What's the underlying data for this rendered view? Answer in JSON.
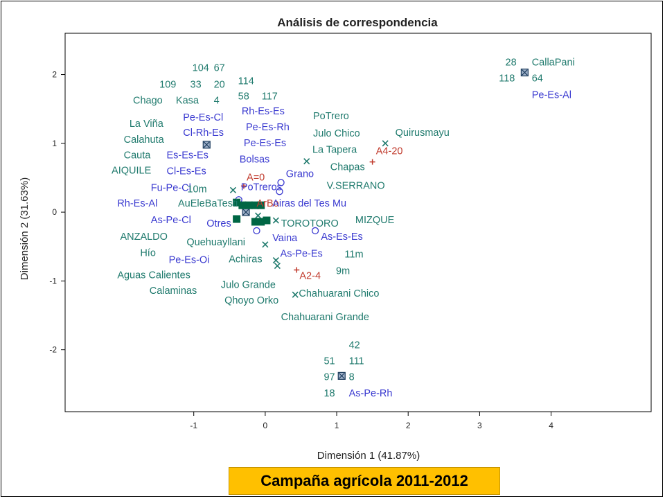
{
  "caption": "Campaña agrícola 2011-2012",
  "colors": {
    "row": "#1f7a6d",
    "column": "#3a3ad0",
    "supplementary": "#c0392b",
    "dense": "#006644",
    "axis": "#000000"
  },
  "chart_data": {
    "type": "scatter",
    "title": "Análisis de correspondencia",
    "xlabel": "Dimensión 1 (41.87%)",
    "ylabel": "Dimensión 2 (31.63%)",
    "xlim": [
      -2.8,
      5.4
    ],
    "ylim": [
      -2.9,
      2.6
    ],
    "xticks": [
      -1,
      0,
      1,
      2,
      3,
      4
    ],
    "yticks": [
      -2,
      -1,
      0,
      1,
      2
    ],
    "grid": false,
    "legend": "none",
    "series": [
      {
        "kind": "row",
        "marker": "x",
        "points": [
          {
            "x": 1.68,
            "y": 1.0
          },
          {
            "x": 0.58,
            "y": 0.74
          },
          {
            "x": 0.15,
            "y": -0.12
          },
          {
            "x": 0.0,
            "y": -0.47
          },
          {
            "x": 0.15,
            "y": -0.7
          },
          {
            "x": 0.17,
            "y": -0.78
          },
          {
            "x": 0.42,
            "y": -1.2
          },
          {
            "x": -0.45,
            "y": 0.32
          },
          {
            "x": -0.1,
            "y": -0.05
          }
        ]
      },
      {
        "kind": "column",
        "marker": "circle",
        "points": [
          {
            "x": 0.22,
            "y": 0.43
          },
          {
            "x": 0.2,
            "y": 0.3
          },
          {
            "x": 0.7,
            "y": -0.27
          },
          {
            "x": -0.12,
            "y": -0.27
          },
          {
            "x": -0.37,
            "y": 0.18
          }
        ]
      },
      {
        "kind": "supplementary",
        "marker": "plus",
        "points": [
          {
            "x": 1.5,
            "y": 0.73
          },
          {
            "x": 0.44,
            "y": -0.84
          },
          {
            "x": -0.3,
            "y": 0.38
          }
        ]
      },
      {
        "kind": "overlap",
        "marker": "boxed-x",
        "points": [
          {
            "x": 3.63,
            "y": 2.03
          },
          {
            "x": 1.07,
            "y": -2.38
          },
          {
            "x": -0.82,
            "y": 0.98
          },
          {
            "x": -0.27,
            "y": 0.0
          }
        ]
      },
      {
        "kind": "dense",
        "marker": "square",
        "points": [
          {
            "x": -0.4,
            "y": 0.14
          },
          {
            "x": -0.32,
            "y": 0.1
          },
          {
            "x": -0.14,
            "y": 0.1
          },
          {
            "x": -0.06,
            "y": 0.1
          },
          {
            "x": -0.4,
            "y": -0.1
          },
          {
            "x": -0.14,
            "y": -0.14
          },
          {
            "x": -0.06,
            "y": -0.14
          },
          {
            "x": 0.02,
            "y": -0.12
          },
          {
            "x": -0.23,
            "y": 0.1
          }
        ]
      }
    ],
    "labels": [
      {
        "text": "104",
        "x": -1.02,
        "y": 2.05,
        "kind": "row"
      },
      {
        "text": "67",
        "x": -0.72,
        "y": 2.05,
        "kind": "row"
      },
      {
        "text": "109",
        "x": -1.48,
        "y": 1.81,
        "kind": "row"
      },
      {
        "text": "33",
        "x": -1.05,
        "y": 1.81,
        "kind": "row"
      },
      {
        "text": "20",
        "x": -0.72,
        "y": 1.81,
        "kind": "row"
      },
      {
        "text": "114",
        "x": -0.38,
        "y": 1.86,
        "kind": "row"
      },
      {
        "text": "58",
        "x": -0.38,
        "y": 1.64,
        "kind": "row"
      },
      {
        "text": "117",
        "x": -0.05,
        "y": 1.64,
        "kind": "row"
      },
      {
        "text": "Chago",
        "x": -1.85,
        "y": 1.58,
        "kind": "row"
      },
      {
        "text": "Kasa",
        "x": -1.25,
        "y": 1.58,
        "kind": "row"
      },
      {
        "text": "4",
        "x": -0.72,
        "y": 1.58,
        "kind": "row"
      },
      {
        "text": "Pe-Es-Cl",
        "x": -1.15,
        "y": 1.33,
        "kind": "column"
      },
      {
        "text": "Rh-Es-Es",
        "x": -0.33,
        "y": 1.42,
        "kind": "column"
      },
      {
        "text": "Pe-Es-Rh",
        "x": -0.27,
        "y": 1.19,
        "kind": "column"
      },
      {
        "text": "PoTrero",
        "x": 0.67,
        "y": 1.35,
        "kind": "row"
      },
      {
        "text": "La Viña",
        "x": -1.9,
        "y": 1.24,
        "kind": "row"
      },
      {
        "text": "Cl-Rh-Es",
        "x": -1.15,
        "y": 1.11,
        "kind": "column"
      },
      {
        "text": "Julo Chico",
        "x": 0.67,
        "y": 1.1,
        "kind": "row"
      },
      {
        "text": "Quirusmayu",
        "x": 1.82,
        "y": 1.11,
        "kind": "row"
      },
      {
        "text": "Calahuta",
        "x": -1.98,
        "y": 1.01,
        "kind": "row"
      },
      {
        "text": "Pe-Es-Es",
        "x": -0.3,
        "y": 0.96,
        "kind": "column"
      },
      {
        "text": "La Tapera",
        "x": 0.66,
        "y": 0.86,
        "kind": "row"
      },
      {
        "text": "A4-20",
        "x": 1.55,
        "y": 0.84,
        "kind": "supplementary"
      },
      {
        "text": "Cauta",
        "x": -1.98,
        "y": 0.78,
        "kind": "row"
      },
      {
        "text": "Es-Es-Es",
        "x": -1.38,
        "y": 0.78,
        "kind": "column"
      },
      {
        "text": "Bolsas",
        "x": -0.36,
        "y": 0.72,
        "kind": "column"
      },
      {
        "text": "Chapas",
        "x": 0.91,
        "y": 0.61,
        "kind": "row"
      },
      {
        "text": "AIQUILE",
        "x": -2.15,
        "y": 0.56,
        "kind": "row"
      },
      {
        "text": "Cl-Es-Es",
        "x": -1.38,
        "y": 0.55,
        "kind": "column"
      },
      {
        "text": "Grano",
        "x": 0.29,
        "y": 0.51,
        "kind": "column"
      },
      {
        "text": "A=0",
        "x": -0.26,
        "y": 0.46,
        "kind": "supplementary"
      },
      {
        "text": "V.SERRANO",
        "x": 0.86,
        "y": 0.34,
        "kind": "row"
      },
      {
        "text": "Fu-Pe-Cl",
        "x": -1.6,
        "y": 0.31,
        "kind": "column"
      },
      {
        "text": "10m",
        "x": -1.09,
        "y": 0.29,
        "kind": "row"
      },
      {
        "text": "PoTreros",
        "x": -0.34,
        "y": 0.32,
        "kind": "column"
      },
      {
        "text": "Rh-Es-Al",
        "x": -2.07,
        "y": 0.08,
        "kind": "column"
      },
      {
        "text": "AuEleBaTesti",
        "x": -1.22,
        "y": 0.08,
        "kind": "row"
      },
      {
        "text": "ArBo",
        "x": -0.12,
        "y": 0.08,
        "kind": "supplementary"
      },
      {
        "text": "Airas del Tes Mu",
        "x": 0.1,
        "y": 0.08,
        "kind": "column"
      },
      {
        "text": "As-Pe-Cl",
        "x": -1.6,
        "y": -0.16,
        "kind": "column"
      },
      {
        "text": "Otres",
        "x": -0.82,
        "y": -0.21,
        "kind": "column"
      },
      {
        "text": "TOROTORO",
        "x": 0.22,
        "y": -0.21,
        "kind": "row"
      },
      {
        "text": "MIZQUE",
        "x": 1.26,
        "y": -0.16,
        "kind": "row"
      },
      {
        "text": "ANZALDO",
        "x": -2.03,
        "y": -0.4,
        "kind": "row"
      },
      {
        "text": "Vaina",
        "x": 0.1,
        "y": -0.42,
        "kind": "column"
      },
      {
        "text": "As-Es-Es",
        "x": 0.78,
        "y": -0.4,
        "kind": "column"
      },
      {
        "text": "Quehuayllani",
        "x": -1.1,
        "y": -0.48,
        "kind": "row"
      },
      {
        "text": "Hío",
        "x": -1.75,
        "y": -0.64,
        "kind": "row"
      },
      {
        "text": "As-Pe-Es",
        "x": 0.21,
        "y": -0.65,
        "kind": "column"
      },
      {
        "text": "11m",
        "x": 1.11,
        "y": -0.66,
        "kind": "row"
      },
      {
        "text": "Pe-Es-Oi",
        "x": -1.35,
        "y": -0.74,
        "kind": "column"
      },
      {
        "text": "Achiras",
        "x": -0.51,
        "y": -0.73,
        "kind": "row"
      },
      {
        "text": "Aguas Calientes",
        "x": -2.07,
        "y": -0.96,
        "kind": "row"
      },
      {
        "text": "9m",
        "x": 0.99,
        "y": -0.9,
        "kind": "row"
      },
      {
        "text": "A2-4",
        "x": 0.48,
        "y": -0.97,
        "kind": "supplementary"
      },
      {
        "text": "Calaminas",
        "x": -1.62,
        "y": -1.19,
        "kind": "row"
      },
      {
        "text": "Julo Grande",
        "x": -0.62,
        "y": -1.1,
        "kind": "row"
      },
      {
        "text": "Chahuarani Chico",
        "x": 0.47,
        "y": -1.23,
        "kind": "row"
      },
      {
        "text": "Qhoyo Orko",
        "x": -0.57,
        "y": -1.33,
        "kind": "row"
      },
      {
        "text": "Chahuarani Grande",
        "x": 0.22,
        "y": -1.57,
        "kind": "row"
      },
      {
        "text": "28",
        "x": 3.36,
        "y": 2.13,
        "kind": "row"
      },
      {
        "text": "CallaPani",
        "x": 3.73,
        "y": 2.13,
        "kind": "row"
      },
      {
        "text": "118",
        "x": 3.27,
        "y": 1.9,
        "kind": "row"
      },
      {
        "text": "64",
        "x": 3.73,
        "y": 1.9,
        "kind": "row"
      },
      {
        "text": "Pe-Es-Al",
        "x": 3.73,
        "y": 1.66,
        "kind": "column"
      },
      {
        "text": "42",
        "x": 1.17,
        "y": -1.98,
        "kind": "row"
      },
      {
        "text": "51",
        "x": 0.82,
        "y": -2.21,
        "kind": "row"
      },
      {
        "text": "111",
        "x": 1.17,
        "y": -2.21,
        "kind": "row"
      },
      {
        "text": "97",
        "x": 0.82,
        "y": -2.44,
        "kind": "row"
      },
      {
        "text": "8",
        "x": 1.17,
        "y": -2.44,
        "kind": "row"
      },
      {
        "text": "18",
        "x": 0.82,
        "y": -2.68,
        "kind": "row"
      },
      {
        "text": "As-Pe-Rh",
        "x": 1.17,
        "y": -2.68,
        "kind": "column"
      }
    ]
  }
}
